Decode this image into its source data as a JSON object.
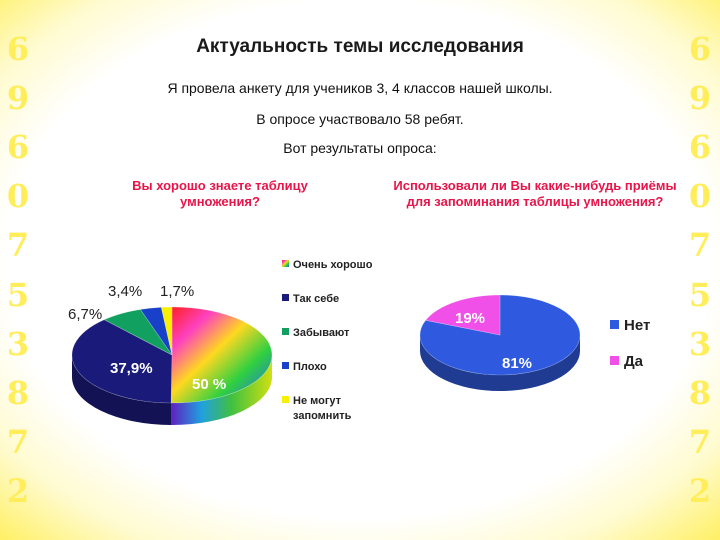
{
  "slide": {
    "title": "Актуальность темы исследования",
    "line1": "Я провела анкету для учеников 3, 4 классов нашей школы.",
    "line2": "В опросе участвовало 58 ребят.",
    "line3": "Вот результаты опроса:",
    "left_digits": [
      "6",
      "9",
      "6",
      "0",
      "7",
      "5",
      "3",
      "8",
      "7",
      "2"
    ],
    "right_digits": [
      "6",
      "9",
      "6",
      "0",
      "7",
      "5",
      "3",
      "8",
      "7",
      "2"
    ]
  },
  "chart_data": [
    {
      "type": "pie",
      "title": "Вы хорошо знаете таблицу умножения?",
      "labels": [
        "Очень хорошо",
        "Так себе",
        "Забывают",
        "Плохо",
        "Не могут запомнить"
      ],
      "values": [
        50,
        37.9,
        6.7,
        3.4,
        1.7
      ],
      "data_labels": [
        "50 %",
        "37,9%",
        "6,7%",
        "3,4%",
        "1,7%"
      ],
      "colors": [
        "rainbow-gradient",
        "#1a1a7a",
        "#12a060",
        "#1840c8",
        "#f8f000"
      ],
      "legend": "right"
    },
    {
      "type": "pie",
      "title": "Использовали ли Вы какие-нибудь приёмы для запоминания таблицы умножения?",
      "labels": [
        "Нет",
        "Да"
      ],
      "values": [
        81,
        19
      ],
      "data_labels": [
        "81%",
        "19%"
      ],
      "colors": [
        "#2f5ae0",
        "#f050e8"
      ],
      "legend": "right"
    }
  ]
}
